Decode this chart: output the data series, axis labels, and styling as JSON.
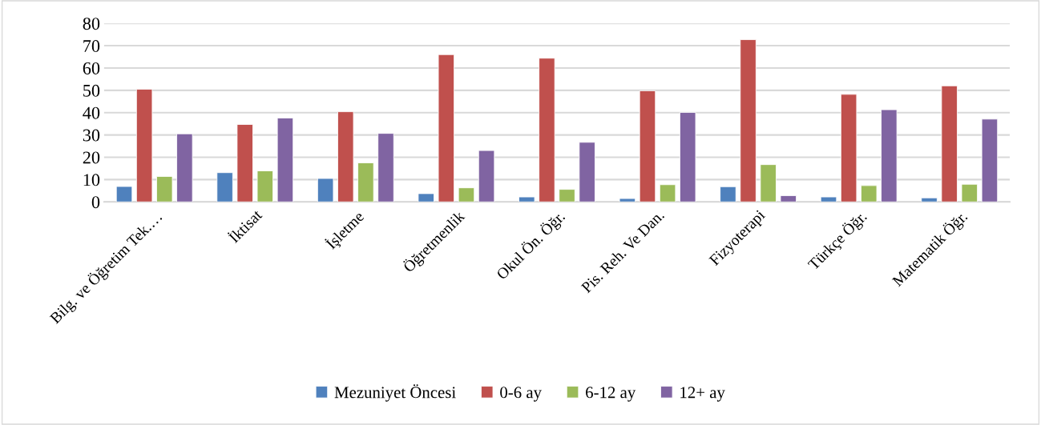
{
  "chart_data": {
    "type": "bar",
    "categories": [
      "Bilg. ve Öğretim Tek.…",
      "İktisat",
      "İşletme",
      "Öğretmenlik",
      "Okul Ön. Öğr.",
      "Pis. Reh. Ve Dan.",
      "Fizyoterapi",
      "Türkçe Öğr.",
      "Matematik Öğr."
    ],
    "series": [
      {
        "name": "Mezuniyet Öncesi",
        "color": "#4f81bd",
        "values": [
          6.9,
          13.1,
          10.5,
          3.7,
          2.2,
          1.5,
          6.8,
          2.2,
          1.8
        ]
      },
      {
        "name": "0-6 ay",
        "color": "#c0504d",
        "values": [
          50.5,
          34.7,
          40.4,
          66.0,
          64.4,
          49.8,
          72.7,
          48.2,
          52.0
        ]
      },
      {
        "name": "6-12 ay",
        "color": "#9bbb59",
        "values": [
          11.4,
          13.9,
          17.5,
          6.3,
          5.6,
          7.7,
          16.7,
          7.3,
          7.9
        ]
      },
      {
        "name": "12+ ay",
        "color": "#8064a2",
        "values": [
          30.5,
          37.6,
          30.7,
          23.0,
          26.7,
          40.1,
          2.8,
          41.3,
          37.1
        ]
      }
    ],
    "ylim": [
      0,
      80
    ],
    "yticks": [
      0,
      10,
      20,
      30,
      40,
      50,
      60,
      70,
      80
    ],
    "grid": "y",
    "legend": "bottom"
  }
}
